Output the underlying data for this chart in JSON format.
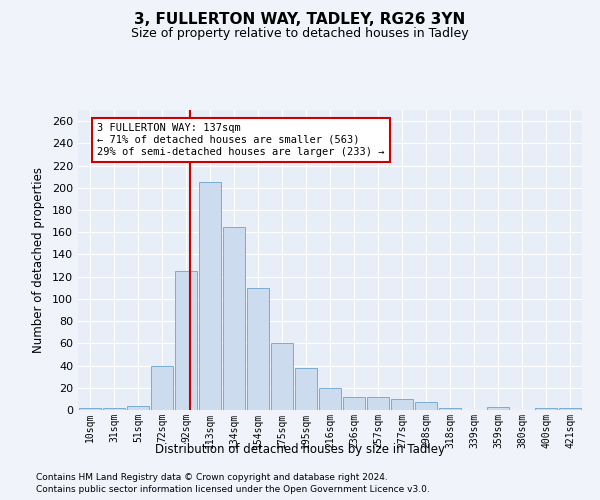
{
  "title1": "3, FULLERTON WAY, TADLEY, RG26 3YN",
  "title2": "Size of property relative to detached houses in Tadley",
  "xlabel": "Distribution of detached houses by size in Tadley",
  "ylabel": "Number of detached properties",
  "bar_color": "#ccdcee",
  "bar_edge_color": "#7aadd4",
  "background_color": "#e8eef8",
  "grid_color": "#ffffff",
  "marker_line_color": "#cc0000",
  "marker_value": 4,
  "annotation_text": "3 FULLERTON WAY: 137sqm\n← 71% of detached houses are smaller (563)\n29% of semi-detached houses are larger (233) →",
  "annotation_box_color": "#ffffff",
  "annotation_border_color": "#cc0000",
  "categories": [
    "10sqm",
    "31sqm",
    "51sqm",
    "72sqm",
    "92sqm",
    "113sqm",
    "134sqm",
    "154sqm",
    "175sqm",
    "195sqm",
    "216sqm",
    "236sqm",
    "257sqm",
    "277sqm",
    "298sqm",
    "318sqm",
    "339sqm",
    "359sqm",
    "380sqm",
    "400sqm",
    "421sqm"
  ],
  "values": [
    2,
    2,
    4,
    40,
    125,
    205,
    165,
    110,
    60,
    38,
    20,
    12,
    12,
    10,
    7,
    2,
    0,
    3,
    0,
    2,
    2
  ],
  "ylim": [
    0,
    270
  ],
  "yticks": [
    0,
    20,
    40,
    60,
    80,
    100,
    120,
    140,
    160,
    180,
    200,
    220,
    240,
    260
  ],
  "footnote1": "Contains HM Land Registry data © Crown copyright and database right 2024.",
  "footnote2": "Contains public sector information licensed under the Open Government Licence v3.0."
}
